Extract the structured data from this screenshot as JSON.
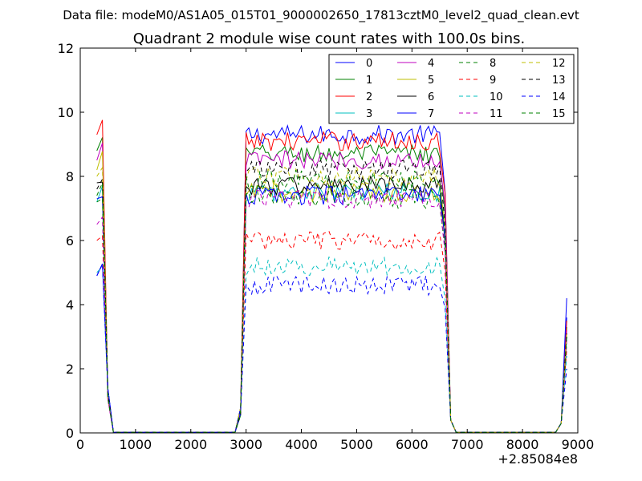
{
  "figure": {
    "suptitle": "Data file: modeM0/AS1A05_015T01_9000002650_17813cztM0_level2_quad_clean.evt"
  },
  "chart_data": {
    "type": "line",
    "title": "Quadrant 2 module wise count rates with 100.0s bins.",
    "xlabel": "",
    "ylabel": "",
    "xlim": [
      0,
      9000
    ],
    "ylim": [
      0,
      12
    ],
    "x_offset_label": "+2.85084e8",
    "x_ticks": [
      0,
      1000,
      2000,
      3000,
      4000,
      5000,
      6000,
      7000,
      8000,
      9000
    ],
    "x_tick_labels": [
      "0",
      "1000",
      "2000",
      "3000",
      "4000",
      "5000",
      "6000",
      "7000",
      "8000",
      "9000"
    ],
    "y_ticks": [
      0,
      2,
      4,
      6,
      8,
      10,
      12
    ],
    "y_tick_labels": [
      "0",
      "2",
      "4",
      "6",
      "8",
      "10",
      "12"
    ],
    "legend_position": "top-right",
    "legend_columns": 4,
    "on_segments": [
      [
        300,
        6600
      ]
    ],
    "gap_ranges": [
      [
        600,
        2800
      ],
      [
        6800,
        8700
      ]
    ],
    "series": [
      {
        "name": "0",
        "color": "#0000ff",
        "dash": "solid",
        "level": 9.3,
        "start": 4.9,
        "end": 3.6
      },
      {
        "name": "1",
        "color": "#008000",
        "dash": "solid",
        "level": 8.7,
        "start": 8.8,
        "end": 3.3
      },
      {
        "name": "2",
        "color": "#ff0000",
        "dash": "solid",
        "level": 9.1,
        "start": 9.3,
        "end": 3.5
      },
      {
        "name": "3",
        "color": "#00bfbf",
        "dash": "solid",
        "level": 7.5,
        "start": 7.2,
        "end": 3.0
      },
      {
        "name": "4",
        "color": "#bf00bf",
        "dash": "solid",
        "level": 8.5,
        "start": 8.5,
        "end": 3.2
      },
      {
        "name": "5",
        "color": "#bfbf00",
        "dash": "solid",
        "level": 7.5,
        "start": 8.2,
        "end": 3.0
      },
      {
        "name": "6",
        "color": "#000000",
        "dash": "solid",
        "level": 7.7,
        "start": 7.8,
        "end": 3.0
      },
      {
        "name": "7",
        "color": "#0000ff",
        "dash": "solid",
        "level": 7.4,
        "start": 7.3,
        "end": 4.2
      },
      {
        "name": "8",
        "color": "#008000",
        "dash": "dashed",
        "level": 7.3,
        "start": 7.2,
        "end": 2.8
      },
      {
        "name": "9",
        "color": "#ff0000",
        "dash": "dashed",
        "level": 6.0,
        "start": 6.0,
        "end": 2.6
      },
      {
        "name": "10",
        "color": "#00bfbf",
        "dash": "dashed",
        "level": 5.2,
        "start": 5.0,
        "end": 2.4
      },
      {
        "name": "11",
        "color": "#bf00bf",
        "dash": "dashed",
        "level": 7.3,
        "start": 6.5,
        "end": 2.9
      },
      {
        "name": "12",
        "color": "#bfbf00",
        "dash": "dashed",
        "level": 8.0,
        "start": 8.0,
        "end": 3.1
      },
      {
        "name": "13",
        "color": "#000000",
        "dash": "dashed",
        "level": 8.2,
        "start": 7.6,
        "end": 3.1
      },
      {
        "name": "14",
        "color": "#0000ff",
        "dash": "dashed",
        "level": 4.6,
        "start": 4.9,
        "end": 2.0
      },
      {
        "name": "15",
        "color": "#008000",
        "dash": "dashed",
        "level": 7.9,
        "start": 7.4,
        "end": 3.0
      }
    ]
  }
}
